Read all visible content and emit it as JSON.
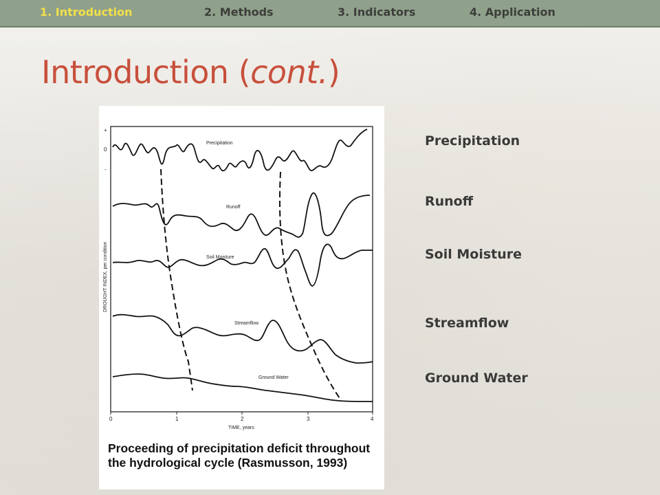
{
  "nav": {
    "items": [
      {
        "label": "1. Introduction",
        "active": true
      },
      {
        "label": "2. Methods",
        "active": false
      },
      {
        "label": "3. Indicators",
        "active": false
      },
      {
        "label": "4. Application",
        "active": false
      }
    ]
  },
  "slide": {
    "title_main": "Introduction (",
    "title_italic": "cont.",
    "title_close": ")"
  },
  "figure": {
    "caption": "Proceeding of precipitation deficit throughout the hydrological cycle (Rasmusson, 1993)",
    "y_axis_label": "DROUGHT INDEX, per condition",
    "x_axis_label": "TIME, years",
    "x_ticks": [
      "0",
      "1",
      "2",
      "3",
      "4"
    ],
    "y_ticks": [
      "+",
      "0",
      "-"
    ],
    "curve_labels": [
      "Precipitation",
      "Runoff",
      "Soil Moisture",
      "Streamflow",
      "Ground Water"
    ]
  },
  "side_labels": [
    "Precipitation",
    "Runoff",
    "Soil Moisture",
    "Streamflow",
    "Ground Water"
  ],
  "colors": {
    "nav_bg": "#8fa08b",
    "nav_active": "#f3e04a",
    "title": "#c8503c",
    "label_text": "#3a3a38"
  }
}
